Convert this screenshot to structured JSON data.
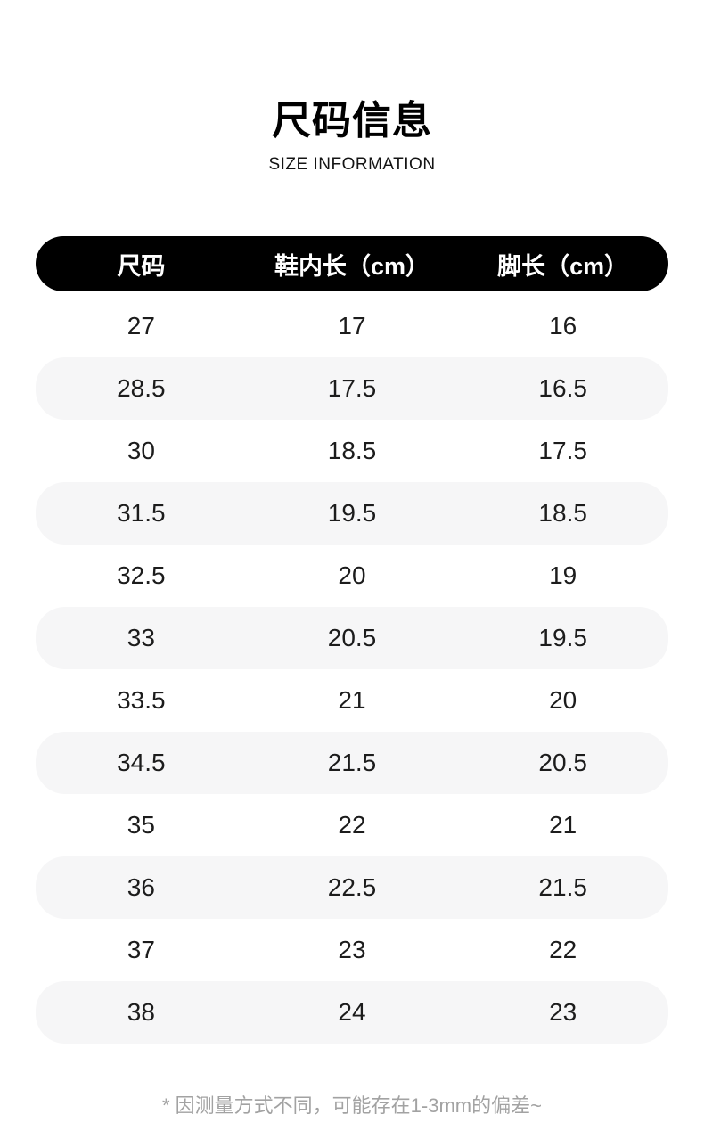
{
  "chart_data": {
    "type": "table",
    "title": "尺码信息",
    "subtitle": "SIZE INFORMATION",
    "columns": [
      "尺码",
      "鞋内长（cm）",
      "脚长（cm）"
    ],
    "rows": [
      [
        "27",
        "17",
        "16"
      ],
      [
        "28.5",
        "17.5",
        "16.5"
      ],
      [
        "30",
        "18.5",
        "17.5"
      ],
      [
        "31.5",
        "19.5",
        "18.5"
      ],
      [
        "32.5",
        "20",
        "19"
      ],
      [
        "33",
        "20.5",
        "19.5"
      ],
      [
        "33.5",
        "21",
        "20"
      ],
      [
        "34.5",
        "21.5",
        "20.5"
      ],
      [
        "35",
        "22",
        "21"
      ],
      [
        "36",
        "22.5",
        "21.5"
      ],
      [
        "37",
        "23",
        "22"
      ],
      [
        "38",
        "24",
        "23"
      ]
    ],
    "footnote": "* 因测量方式不同，可能存在1-3mm的偏差~",
    "layout": {
      "zebra_striping": true,
      "first_row_background": "white"
    }
  },
  "colors": {
    "header_bg": "#000000",
    "header_text": "#ffffff",
    "row_alt_bg": "#f6f6f7",
    "body_text": "#1c1c1c",
    "footnote_text": "#a2a2a2",
    "page_bg": "#ffffff"
  }
}
